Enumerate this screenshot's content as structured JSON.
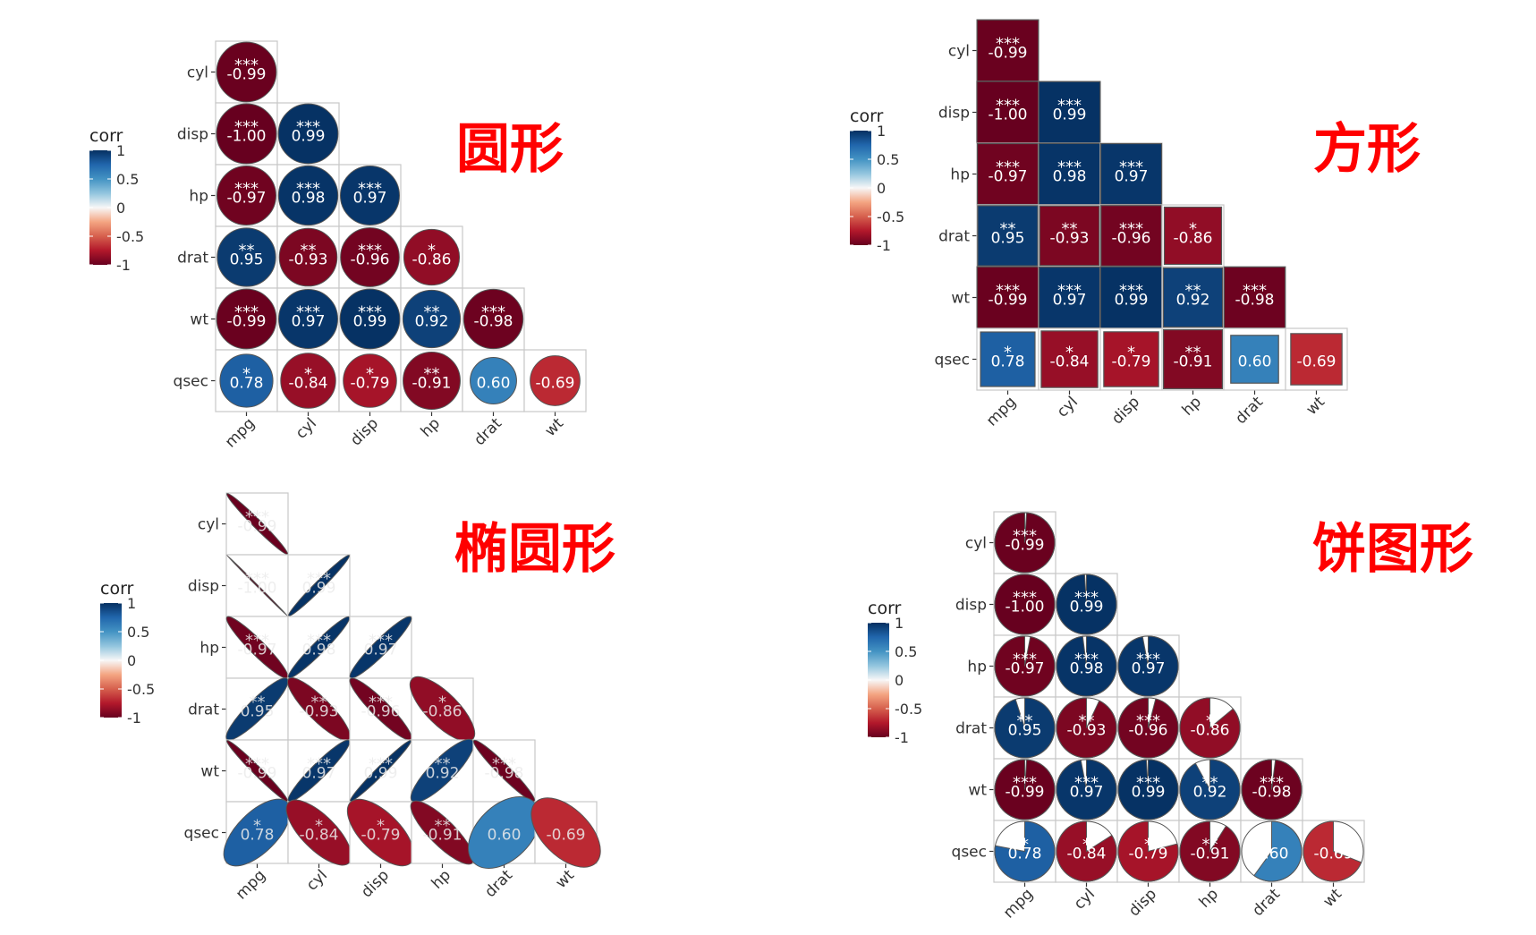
{
  "chart_data": [
    {
      "type": "heatmap",
      "title": "圆形",
      "shape": "circle",
      "legend_title": "corr",
      "legend_ticks": [
        "1",
        "0.5",
        "0",
        "-0.5",
        "-1"
      ],
      "row_labels": [
        "cyl",
        "disp",
        "hp",
        "drat",
        "wt",
        "qsec"
      ],
      "col_labels": [
        "mpg",
        "cyl",
        "disp",
        "hp",
        "drat",
        "wt"
      ],
      "cells": [
        {
          "row": 0,
          "col": 0,
          "value": -0.99,
          "label": "-0.99",
          "sig": "***"
        },
        {
          "row": 1,
          "col": 0,
          "value": -1.0,
          "label": "-1.00",
          "sig": "***"
        },
        {
          "row": 1,
          "col": 1,
          "value": 0.99,
          "label": "0.99",
          "sig": "***"
        },
        {
          "row": 2,
          "col": 0,
          "value": -0.97,
          "label": "-0.97",
          "sig": "***"
        },
        {
          "row": 2,
          "col": 1,
          "value": 0.98,
          "label": "0.98",
          "sig": "***"
        },
        {
          "row": 2,
          "col": 2,
          "value": 0.97,
          "label": "0.97",
          "sig": "***"
        },
        {
          "row": 3,
          "col": 0,
          "value": 0.95,
          "label": "0.95",
          "sig": "**"
        },
        {
          "row": 3,
          "col": 1,
          "value": -0.93,
          "label": "-0.93",
          "sig": "**"
        },
        {
          "row": 3,
          "col": 2,
          "value": -0.96,
          "label": "-0.96",
          "sig": "***"
        },
        {
          "row": 3,
          "col": 3,
          "value": -0.86,
          "label": "-0.86",
          "sig": "*"
        },
        {
          "row": 4,
          "col": 0,
          "value": -0.99,
          "label": "-0.99",
          "sig": "***"
        },
        {
          "row": 4,
          "col": 1,
          "value": 0.97,
          "label": "0.97",
          "sig": "***"
        },
        {
          "row": 4,
          "col": 2,
          "value": 0.99,
          "label": "0.99",
          "sig": "***"
        },
        {
          "row": 4,
          "col": 3,
          "value": 0.92,
          "label": "0.92",
          "sig": "**"
        },
        {
          "row": 4,
          "col": 4,
          "value": -0.98,
          "label": "-0.98",
          "sig": "***"
        },
        {
          "row": 5,
          "col": 0,
          "value": 0.78,
          "label": "0.78",
          "sig": "*"
        },
        {
          "row": 5,
          "col": 1,
          "value": -0.84,
          "label": "-0.84",
          "sig": "*"
        },
        {
          "row": 5,
          "col": 2,
          "value": -0.79,
          "label": "-0.79",
          "sig": "*"
        },
        {
          "row": 5,
          "col": 3,
          "value": -0.91,
          "label": "-0.91",
          "sig": "**"
        },
        {
          "row": 5,
          "col": 4,
          "value": 0.6,
          "label": "0.60",
          "sig": ""
        },
        {
          "row": 5,
          "col": 5,
          "value": -0.69,
          "label": "-0.69",
          "sig": ""
        }
      ]
    },
    {
      "type": "heatmap",
      "title": "方形",
      "shape": "square",
      "legend_title": "corr",
      "legend_ticks": [
        "1",
        "0.5",
        "0",
        "-0.5",
        "-1"
      ],
      "row_labels": [
        "cyl",
        "disp",
        "hp",
        "drat",
        "wt",
        "qsec"
      ],
      "col_labels": [
        "mpg",
        "cyl",
        "disp",
        "hp",
        "drat",
        "wt"
      ],
      "cells": [
        {
          "row": 0,
          "col": 0,
          "value": -0.99,
          "label": "-0.99",
          "sig": "***"
        },
        {
          "row": 1,
          "col": 0,
          "value": -1.0,
          "label": "-1.00",
          "sig": "***"
        },
        {
          "row": 1,
          "col": 1,
          "value": 0.99,
          "label": "0.99",
          "sig": "***"
        },
        {
          "row": 2,
          "col": 0,
          "value": -0.97,
          "label": "-0.97",
          "sig": "***"
        },
        {
          "row": 2,
          "col": 1,
          "value": 0.98,
          "label": "0.98",
          "sig": "***"
        },
        {
          "row": 2,
          "col": 2,
          "value": 0.97,
          "label": "0.97",
          "sig": "***"
        },
        {
          "row": 3,
          "col": 0,
          "value": 0.95,
          "label": "0.95",
          "sig": "**"
        },
        {
          "row": 3,
          "col": 1,
          "value": -0.93,
          "label": "-0.93",
          "sig": "**"
        },
        {
          "row": 3,
          "col": 2,
          "value": -0.96,
          "label": "-0.96",
          "sig": "***"
        },
        {
          "row": 3,
          "col": 3,
          "value": -0.86,
          "label": "-0.86",
          "sig": "*"
        },
        {
          "row": 4,
          "col": 0,
          "value": -0.99,
          "label": "-0.99",
          "sig": "***"
        },
        {
          "row": 4,
          "col": 1,
          "value": 0.97,
          "label": "0.97",
          "sig": "***"
        },
        {
          "row": 4,
          "col": 2,
          "value": 0.99,
          "label": "0.99",
          "sig": "***"
        },
        {
          "row": 4,
          "col": 3,
          "value": 0.92,
          "label": "0.92",
          "sig": "**"
        },
        {
          "row": 4,
          "col": 4,
          "value": -0.98,
          "label": "-0.98",
          "sig": "***"
        },
        {
          "row": 5,
          "col": 0,
          "value": 0.78,
          "label": "0.78",
          "sig": "*"
        },
        {
          "row": 5,
          "col": 1,
          "value": -0.84,
          "label": "-0.84",
          "sig": "*"
        },
        {
          "row": 5,
          "col": 2,
          "value": -0.79,
          "label": "-0.79",
          "sig": "*"
        },
        {
          "row": 5,
          "col": 3,
          "value": -0.91,
          "label": "-0.91",
          "sig": "**"
        },
        {
          "row": 5,
          "col": 4,
          "value": 0.6,
          "label": "0.60",
          "sig": ""
        },
        {
          "row": 5,
          "col": 5,
          "value": -0.69,
          "label": "-0.69",
          "sig": ""
        }
      ]
    },
    {
      "type": "heatmap",
      "title": "椭圆形",
      "shape": "ellipse",
      "legend_title": "corr",
      "legend_ticks": [
        "1",
        "0.5",
        "0",
        "-0.5",
        "-1"
      ],
      "row_labels": [
        "cyl",
        "disp",
        "hp",
        "drat",
        "wt",
        "qsec"
      ],
      "col_labels": [
        "mpg",
        "cyl",
        "disp",
        "hp",
        "drat",
        "wt"
      ],
      "cells": [
        {
          "row": 0,
          "col": 0,
          "value": -0.99,
          "label": "-0.99",
          "sig": "***"
        },
        {
          "row": 1,
          "col": 0,
          "value": -1.0,
          "label": "-1.00",
          "sig": "***"
        },
        {
          "row": 1,
          "col": 1,
          "value": 0.99,
          "label": "0.99",
          "sig": "***"
        },
        {
          "row": 2,
          "col": 0,
          "value": -0.97,
          "label": "-0.97",
          "sig": "***"
        },
        {
          "row": 2,
          "col": 1,
          "value": 0.98,
          "label": "0.98",
          "sig": "***"
        },
        {
          "row": 2,
          "col": 2,
          "value": 0.97,
          "label": "0.97",
          "sig": "***"
        },
        {
          "row": 3,
          "col": 0,
          "value": 0.95,
          "label": "0.95",
          "sig": "**"
        },
        {
          "row": 3,
          "col": 1,
          "value": -0.93,
          "label": "-0.93",
          "sig": "**"
        },
        {
          "row": 3,
          "col": 2,
          "value": -0.96,
          "label": "-0.96",
          "sig": "***"
        },
        {
          "row": 3,
          "col": 3,
          "value": -0.86,
          "label": "-0.86",
          "sig": "*"
        },
        {
          "row": 4,
          "col": 0,
          "value": -0.99,
          "label": "-0.99",
          "sig": "***"
        },
        {
          "row": 4,
          "col": 1,
          "value": 0.97,
          "label": "0.97",
          "sig": "***"
        },
        {
          "row": 4,
          "col": 2,
          "value": 0.99,
          "label": "0.99",
          "sig": "***"
        },
        {
          "row": 4,
          "col": 3,
          "value": 0.92,
          "label": "0.92",
          "sig": "**"
        },
        {
          "row": 4,
          "col": 4,
          "value": -0.98,
          "label": "-0.98",
          "sig": "***"
        },
        {
          "row": 5,
          "col": 0,
          "value": 0.78,
          "label": "0.78",
          "sig": "*"
        },
        {
          "row": 5,
          "col": 1,
          "value": -0.84,
          "label": "-0.84",
          "sig": "*"
        },
        {
          "row": 5,
          "col": 2,
          "value": -0.79,
          "label": "-0.79",
          "sig": "*"
        },
        {
          "row": 5,
          "col": 3,
          "value": -0.91,
          "label": "-0.91",
          "sig": "**"
        },
        {
          "row": 5,
          "col": 4,
          "value": 0.6,
          "label": "0.60",
          "sig": ""
        },
        {
          "row": 5,
          "col": 5,
          "value": -0.69,
          "label": "-0.69",
          "sig": ""
        }
      ]
    },
    {
      "type": "heatmap",
      "title": "饼图形",
      "shape": "pie",
      "legend_title": "corr",
      "legend_ticks": [
        "1",
        "0.5",
        "0",
        "-0.5",
        "-1"
      ],
      "row_labels": [
        "cyl",
        "disp",
        "hp",
        "drat",
        "wt",
        "qsec"
      ],
      "col_labels": [
        "mpg",
        "cyl",
        "disp",
        "hp",
        "drat",
        "wt"
      ],
      "cells": [
        {
          "row": 0,
          "col": 0,
          "value": -0.99,
          "label": "-0.99",
          "sig": "***"
        },
        {
          "row": 1,
          "col": 0,
          "value": -1.0,
          "label": "-1.00",
          "sig": "***"
        },
        {
          "row": 1,
          "col": 1,
          "value": 0.99,
          "label": "0.99",
          "sig": "***"
        },
        {
          "row": 2,
          "col": 0,
          "value": -0.97,
          "label": "-0.97",
          "sig": "***"
        },
        {
          "row": 2,
          "col": 1,
          "value": 0.98,
          "label": "0.98",
          "sig": "***"
        },
        {
          "row": 2,
          "col": 2,
          "value": 0.97,
          "label": "0.97",
          "sig": "***"
        },
        {
          "row": 3,
          "col": 0,
          "value": 0.95,
          "label": "0.95",
          "sig": "**"
        },
        {
          "row": 3,
          "col": 1,
          "value": -0.93,
          "label": "-0.93",
          "sig": "**"
        },
        {
          "row": 3,
          "col": 2,
          "value": -0.96,
          "label": "-0.96",
          "sig": "***"
        },
        {
          "row": 3,
          "col": 3,
          "value": -0.86,
          "label": "-0.86",
          "sig": "*"
        },
        {
          "row": 4,
          "col": 0,
          "value": -0.99,
          "label": "-0.99",
          "sig": "***"
        },
        {
          "row": 4,
          "col": 1,
          "value": 0.97,
          "label": "0.97",
          "sig": "***"
        },
        {
          "row": 4,
          "col": 2,
          "value": 0.99,
          "label": "0.99",
          "sig": "***"
        },
        {
          "row": 4,
          "col": 3,
          "value": 0.92,
          "label": "0.92",
          "sig": "**"
        },
        {
          "row": 4,
          "col": 4,
          "value": -0.98,
          "label": "-0.98",
          "sig": "***"
        },
        {
          "row": 5,
          "col": 0,
          "value": 0.78,
          "label": "0.78",
          "sig": "*"
        },
        {
          "row": 5,
          "col": 1,
          "value": -0.84,
          "label": "-0.84",
          "sig": "*"
        },
        {
          "row": 5,
          "col": 2,
          "value": -0.79,
          "label": "-0.79",
          "sig": "*"
        },
        {
          "row": 5,
          "col": 3,
          "value": -0.91,
          "label": "-0.91",
          "sig": "**"
        },
        {
          "row": 5,
          "col": 4,
          "value": 0.6,
          "label": "0.60",
          "sig": ""
        },
        {
          "row": 5,
          "col": 5,
          "value": -0.69,
          "label": "-0.69",
          "sig": ""
        }
      ]
    }
  ]
}
